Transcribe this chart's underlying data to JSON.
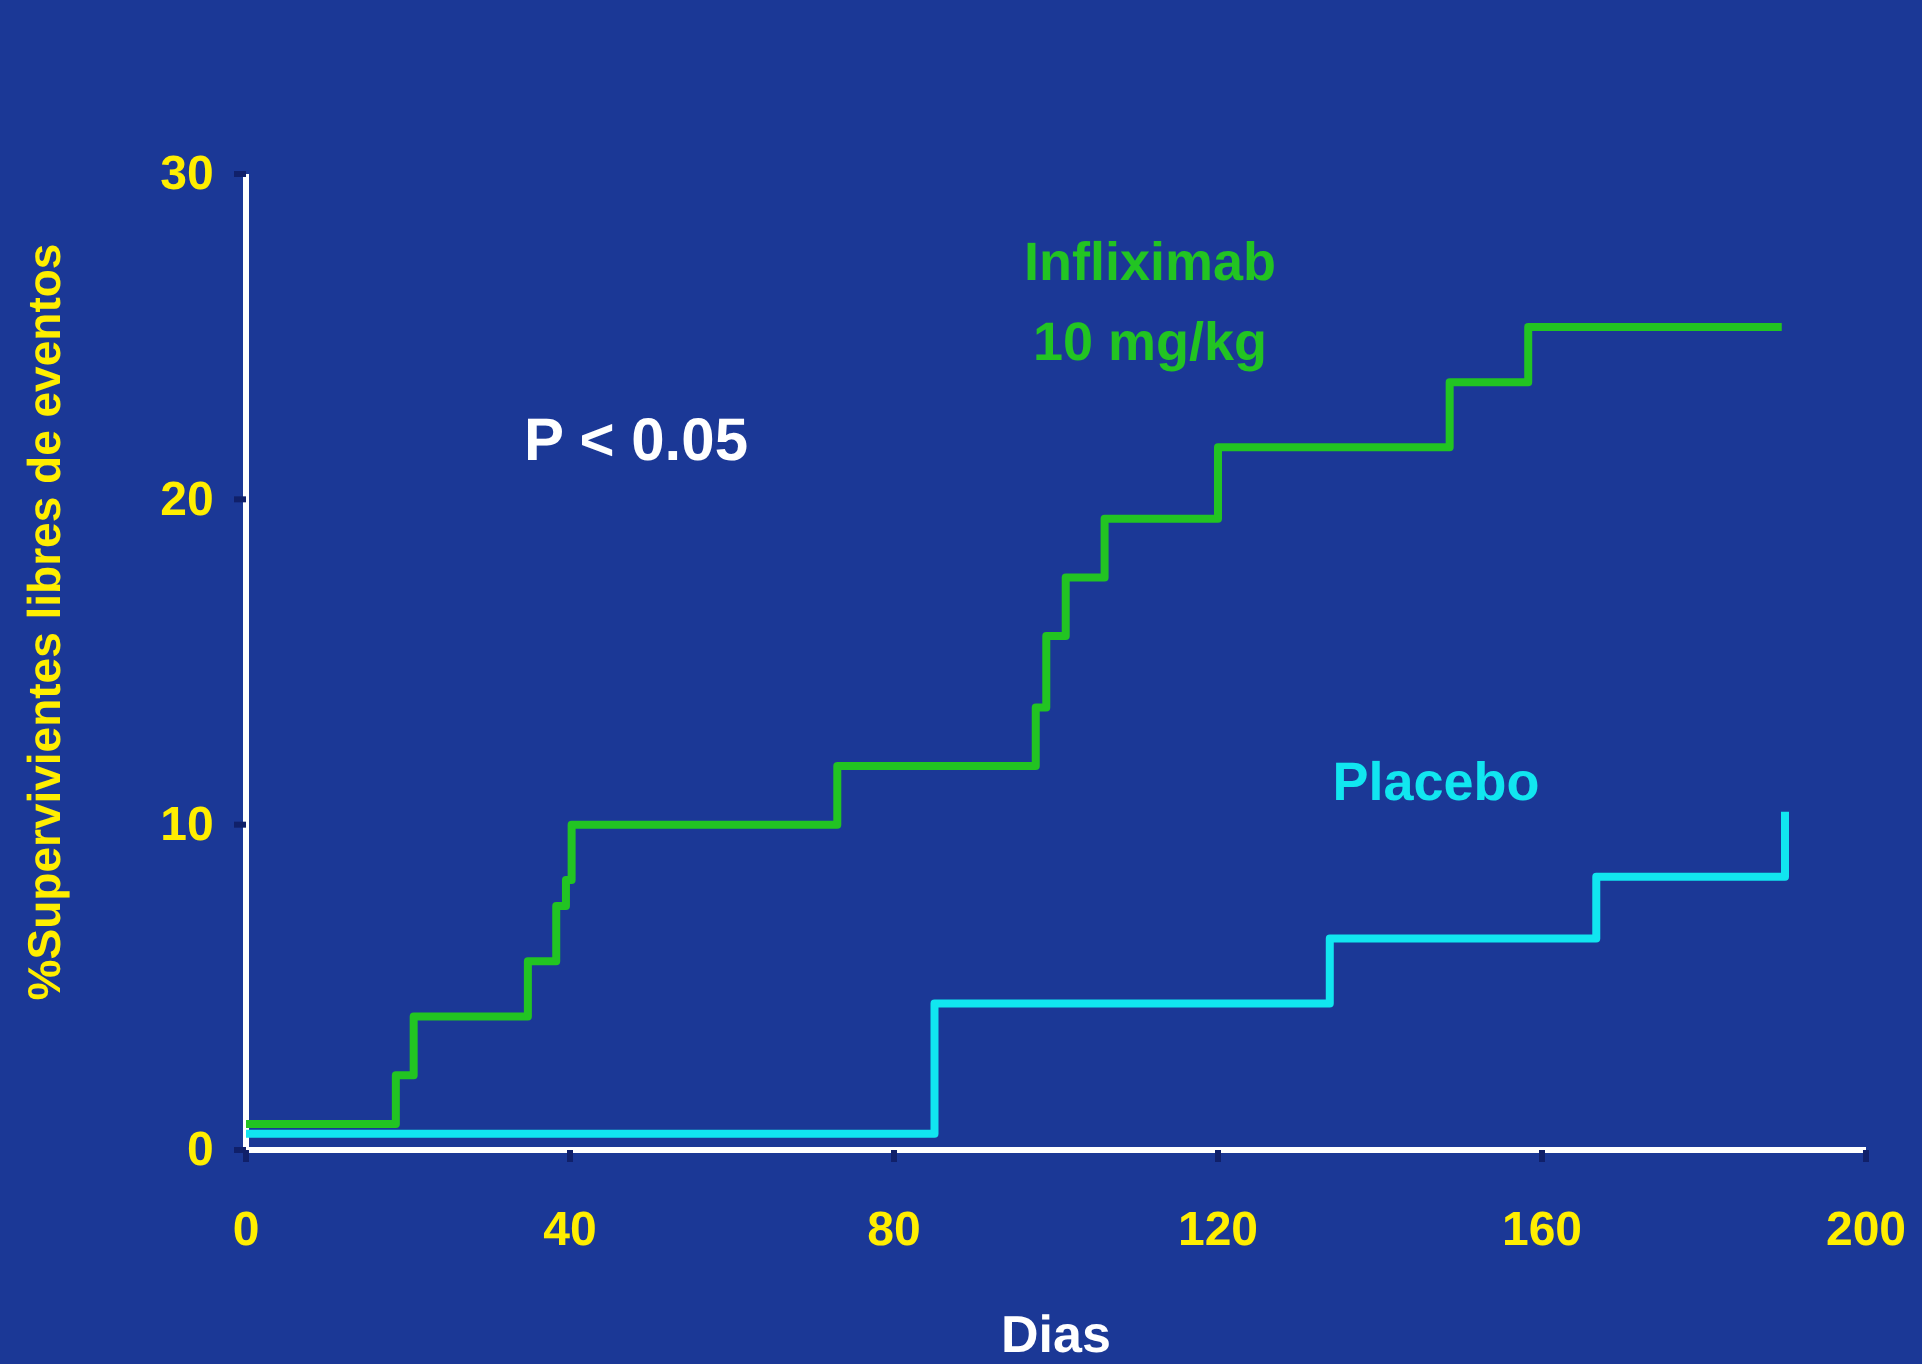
{
  "chart_data": {
    "type": "step",
    "xlabel": "Dias",
    "ylabel": "%Supervivientes libres de eventos",
    "xlim": [
      0,
      200
    ],
    "xticks": [
      0,
      40,
      80,
      120,
      160,
      200
    ],
    "ylim": [
      0,
      30
    ],
    "yticks": [
      0,
      10,
      20,
      30
    ],
    "annotations": [
      "P < 0.05"
    ],
    "series": [
      {
        "name": "Infliximab 10 mg/kg",
        "color": "#22c422",
        "x": [
          0,
          18.5,
          20.7,
          34.8,
          38.3,
          39.5,
          40.2,
          73,
          97.5,
          98.8,
          101.2,
          106,
          120,
          148.6,
          158.3,
          189.6
        ],
        "values": [
          0.8,
          2.3,
          4.1,
          5.8,
          7.5,
          8.3,
          10,
          11.8,
          13.6,
          15.8,
          17.6,
          19.4,
          21.6,
          23.6,
          25.3,
          25.3
        ]
      },
      {
        "name": "Placebo",
        "color": "#11e6f0",
        "x": [
          0,
          85,
          133.8,
          166.7,
          190
        ],
        "values": [
          0.5,
          4.5,
          6.5,
          8.4,
          10.4
        ]
      }
    ]
  }
}
